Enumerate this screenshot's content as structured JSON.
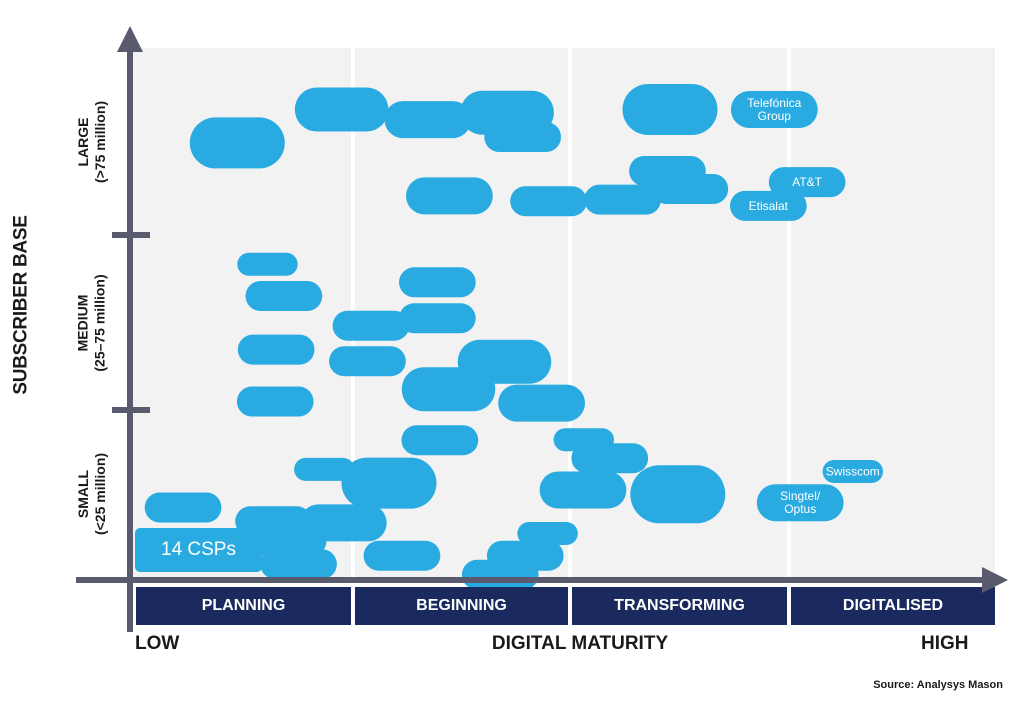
{
  "chart_data": {
    "type": "scatter",
    "y_axis_title": "SUBSCRIBER BASE",
    "y_bands": [
      {
        "line1": "LARGE",
        "line2": "(>75 million)"
      },
      {
        "line1": "MEDIUM",
        "line2": "(25–75 million)"
      },
      {
        "line1": "SMALL",
        "line2": "(<25 million)"
      }
    ],
    "x_low": "LOW",
    "x_title": "DIGITAL MATURITY",
    "x_high": "HIGH",
    "x_categories": [
      "PLANNING",
      "BEGINNING",
      "TRANSFORMING",
      "DIGITALISED"
    ],
    "legend_label": "14 CSPs",
    "source": "Source: Analysys Mason",
    "colors": {
      "bubble": "#29abe2",
      "stage_bar": "#1a2a5e",
      "plot_bg": "#f2f2f2",
      "axis": "#5a5a6e"
    },
    "note": "x: digital maturity 0 (low) to 100 (high); y: subscriber base 0 (bottom of small) to 100 (top of large); size in CSP count",
    "bubbles": [
      {
        "x": 24.2,
        "y": 88.4,
        "size": 4,
        "label": ""
      },
      {
        "x": 12.1,
        "y": 82.1,
        "size": 5,
        "label": ""
      },
      {
        "x": 34.2,
        "y": 86.5,
        "size": 3,
        "label": ""
      },
      {
        "x": 43.4,
        "y": 87.8,
        "size": 4,
        "label": ""
      },
      {
        "x": 45.2,
        "y": 83.2,
        "size": 2,
        "label": ""
      },
      {
        "x": 62.3,
        "y": 88.4,
        "size": 5,
        "label": ""
      },
      {
        "x": 74.4,
        "y": 88.4,
        "size": 3,
        "label": "Telefónica Group"
      },
      {
        "x": 62.0,
        "y": 76.8,
        "size": 2,
        "label": ""
      },
      {
        "x": 36.7,
        "y": 72.1,
        "size": 3,
        "label": ""
      },
      {
        "x": 48.2,
        "y": 71.1,
        "size": 2,
        "label": ""
      },
      {
        "x": 56.8,
        "y": 71.4,
        "size": 2,
        "label": ""
      },
      {
        "x": 64.6,
        "y": 73.4,
        "size": 2,
        "label": ""
      },
      {
        "x": 78.2,
        "y": 74.7,
        "size": 2,
        "label": "AT&T"
      },
      {
        "x": 73.7,
        "y": 70.2,
        "size": 2,
        "label": "Etisalat"
      },
      {
        "x": 15.6,
        "y": 59.2,
        "size": 1,
        "label": ""
      },
      {
        "x": 17.5,
        "y": 53.2,
        "size": 2,
        "label": ""
      },
      {
        "x": 16.6,
        "y": 43.1,
        "size": 2,
        "label": ""
      },
      {
        "x": 16.5,
        "y": 33.3,
        "size": 2,
        "label": ""
      },
      {
        "x": 35.3,
        "y": 55.8,
        "size": 2,
        "label": ""
      },
      {
        "x": 35.3,
        "y": 49.0,
        "size": 2,
        "label": ""
      },
      {
        "x": 27.6,
        "y": 47.6,
        "size": 2,
        "label": ""
      },
      {
        "x": 27.2,
        "y": 40.9,
        "size": 2,
        "label": ""
      },
      {
        "x": 43.1,
        "y": 40.8,
        "size": 4,
        "label": ""
      },
      {
        "x": 36.6,
        "y": 35.6,
        "size": 4,
        "label": ""
      },
      {
        "x": 47.4,
        "y": 33.0,
        "size": 3,
        "label": ""
      },
      {
        "x": 35.6,
        "y": 26.0,
        "size": 2,
        "label": ""
      },
      {
        "x": 52.3,
        "y": 26.1,
        "size": 1,
        "label": ""
      },
      {
        "x": 55.3,
        "y": 22.6,
        "size": 2,
        "label": ""
      },
      {
        "x": 22.2,
        "y": 20.5,
        "size": 1,
        "label": ""
      },
      {
        "x": 29.7,
        "y": 17.9,
        "size": 5,
        "label": ""
      },
      {
        "x": 52.2,
        "y": 16.6,
        "size": 3,
        "label": ""
      },
      {
        "x": 63.2,
        "y": 15.8,
        "size": 6,
        "label": ""
      },
      {
        "x": 83.5,
        "y": 20.1,
        "size": 1,
        "label": "Swisscom"
      },
      {
        "x": 77.4,
        "y": 14.2,
        "size": 3,
        "label": "Singtel/ Optus"
      },
      {
        "x": 5.8,
        "y": 13.3,
        "size": 2,
        "label": ""
      },
      {
        "x": 16.3,
        "y": 10.7,
        "size": 2,
        "label": ""
      },
      {
        "x": 24.4,
        "y": 10.4,
        "size": 3,
        "label": ""
      },
      {
        "x": 18.0,
        "y": 7.0,
        "size": 2,
        "label": ""
      },
      {
        "x": 48.1,
        "y": 8.4,
        "size": 1,
        "label": ""
      },
      {
        "x": 19.2,
        "y": 2.6,
        "size": 2,
        "label": ""
      },
      {
        "x": 31.2,
        "y": 4.2,
        "size": 2,
        "label": ""
      },
      {
        "x": 45.5,
        "y": 4.2,
        "size": 2,
        "label": ""
      },
      {
        "x": 42.6,
        "y": 0.6,
        "size": 2,
        "label": ""
      }
    ]
  }
}
